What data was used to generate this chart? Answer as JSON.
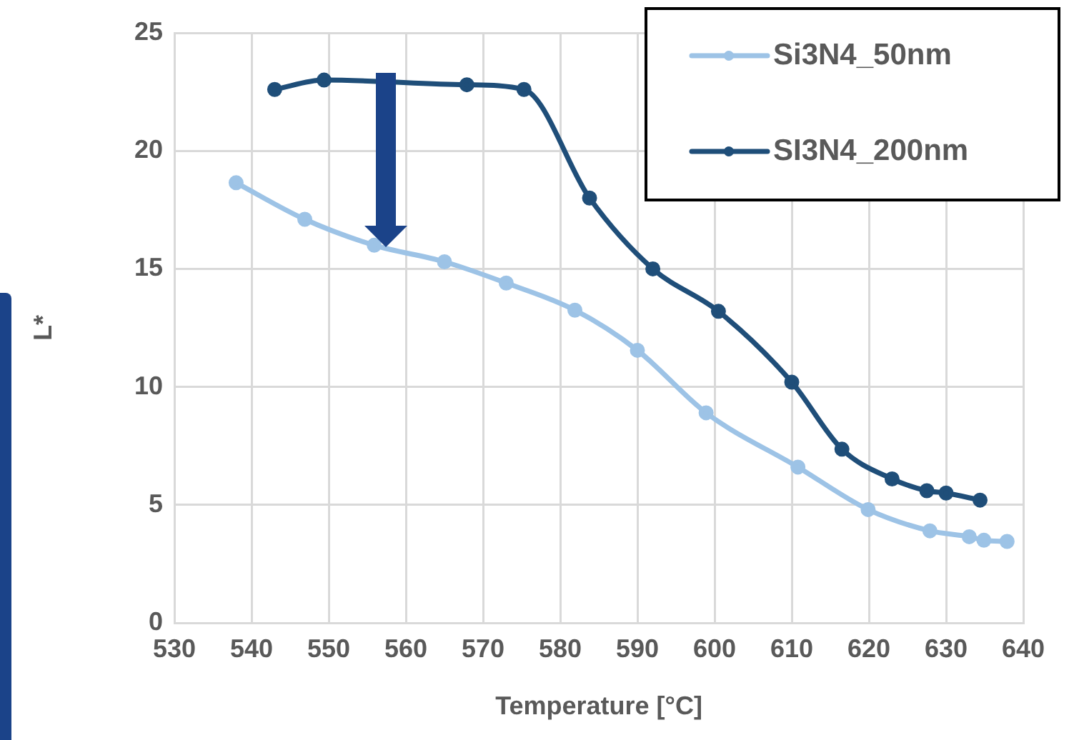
{
  "chart_data": {
    "type": "line",
    "xlabel": "Temperature [°C]",
    "ylabel": "L*",
    "xlim": [
      530,
      640
    ],
    "xticks": [
      530,
      540,
      550,
      560,
      570,
      580,
      590,
      600,
      610,
      620,
      630,
      640
    ],
    "ylim": [
      0,
      25
    ],
    "yticks": [
      0,
      5,
      10,
      15,
      20,
      25
    ],
    "grid": true,
    "legend": "top right",
    "marker": "circle",
    "line_style": "solid",
    "series": [
      {
        "name": "Si3N4_50nm",
        "color": "#9dc3e6",
        "x": [
          538.0,
          546.9,
          555.9,
          565.0,
          573.0,
          581.9,
          590.0,
          598.9,
          610.8,
          619.9,
          627.9,
          633.0,
          634.9,
          637.9
        ],
        "values": [
          18.65,
          17.1,
          16.0,
          15.3,
          14.4,
          13.25,
          11.55,
          8.9,
          6.6,
          4.8,
          3.9,
          3.65,
          3.5,
          3.45
        ]
      },
      {
        "name": "SI3N4_200nm",
        "color": "#1f4e79",
        "x": [
          543.0,
          549.4,
          567.9,
          575.3,
          583.8,
          592.0,
          600.5,
          610.0,
          616.5,
          623.0,
          627.5,
          630.0,
          634.4
        ],
        "values": [
          22.6,
          23.0,
          22.8,
          22.6,
          18.0,
          15.0,
          13.2,
          10.2,
          7.36,
          6.1,
          5.6,
          5.5,
          5.2
        ]
      }
    ]
  }
}
